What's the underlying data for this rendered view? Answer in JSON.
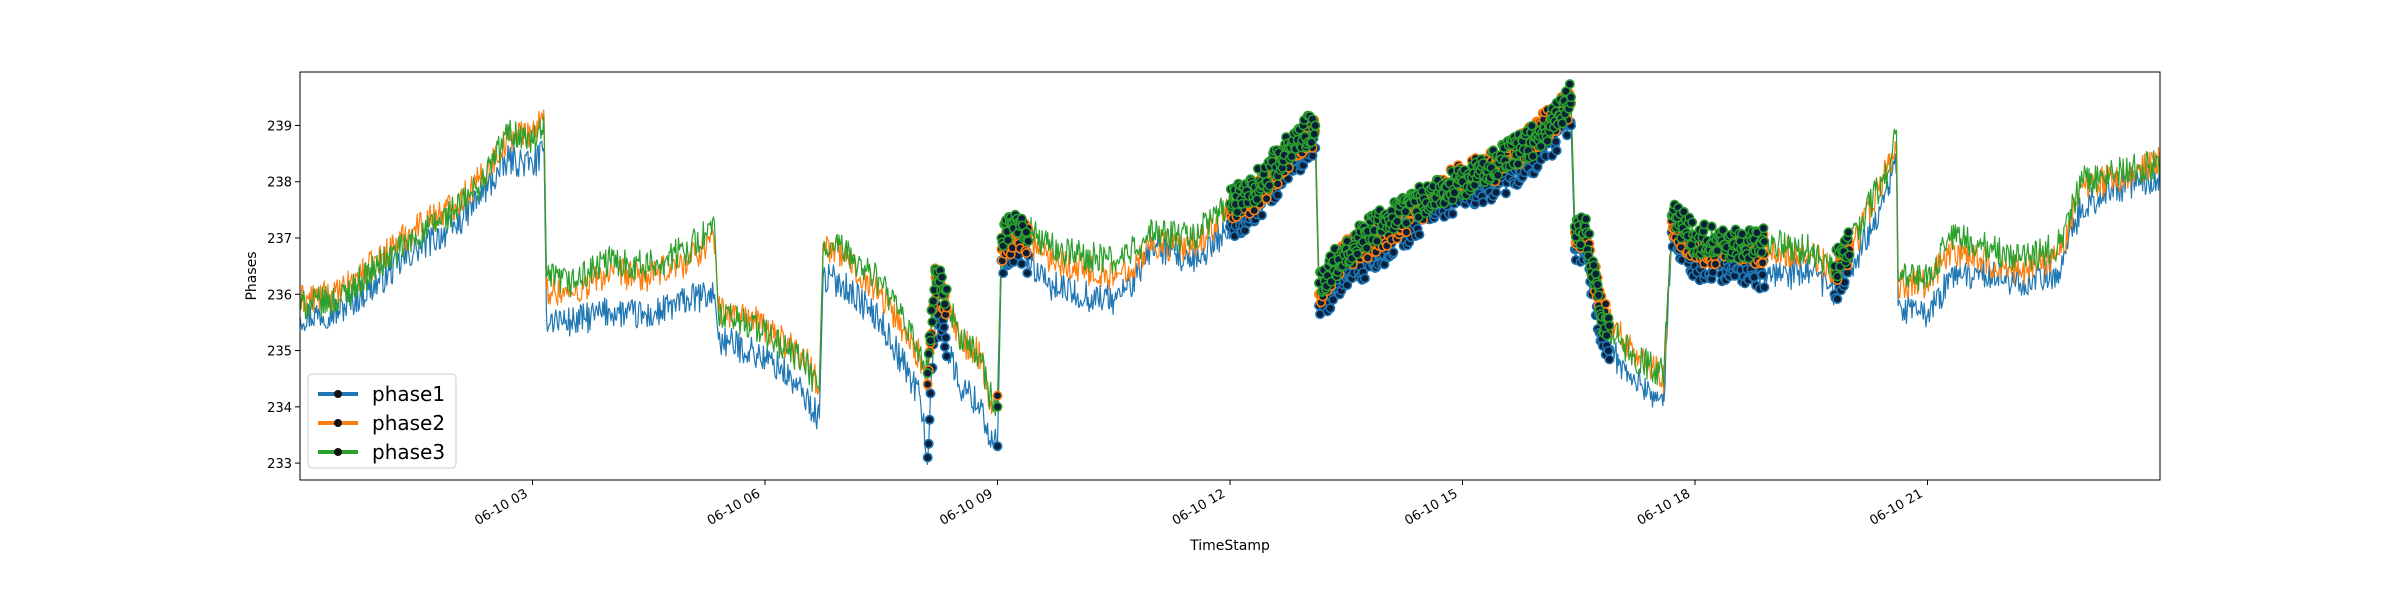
{
  "chart_data": {
    "type": "line",
    "title": "",
    "xlabel": "TimeStamp",
    "ylabel": "Phases",
    "xlim": [
      0.0,
      24.0
    ],
    "ylim": [
      232.7,
      239.95
    ],
    "grid": false,
    "legend_position": "lower-left",
    "x_ticks": [
      {
        "value": 3,
        "label": "06-10 03"
      },
      {
        "value": 6,
        "label": "06-10 06"
      },
      {
        "value": 9,
        "label": "06-10 09"
      },
      {
        "value": 12,
        "label": "06-10 12"
      },
      {
        "value": 15,
        "label": "06-10 15"
      },
      {
        "value": 18,
        "label": "06-10 18"
      },
      {
        "value": 21,
        "label": "06-10 21"
      }
    ],
    "y_ticks": [
      233,
      234,
      235,
      236,
      237,
      238,
      239
    ],
    "series": [
      {
        "name": "phase1",
        "color": "#1f77b4",
        "points": [
          [
            0.0,
            235.6
          ],
          [
            0.5,
            235.7
          ],
          [
            1.0,
            236.2
          ],
          [
            1.5,
            236.8
          ],
          [
            2.0,
            237.2
          ],
          [
            2.3,
            237.7
          ],
          [
            2.7,
            238.4
          ],
          [
            3.0,
            238.3
          ],
          [
            3.15,
            238.5
          ],
          [
            3.18,
            235.6
          ],
          [
            3.5,
            235.5
          ],
          [
            4.0,
            235.7
          ],
          [
            4.5,
            235.6
          ],
          [
            5.0,
            235.9
          ],
          [
            5.35,
            236.0
          ],
          [
            5.4,
            235.2
          ],
          [
            5.8,
            235.0
          ],
          [
            6.2,
            234.7
          ],
          [
            6.5,
            234.2
          ],
          [
            6.7,
            233.8
          ],
          [
            6.75,
            236.3
          ],
          [
            7.0,
            236.2
          ],
          [
            7.5,
            235.5
          ],
          [
            8.0,
            234.2
          ],
          [
            8.1,
            233.1
          ],
          [
            8.2,
            235.8
          ],
          [
            8.5,
            234.4
          ],
          [
            8.8,
            234.0
          ],
          [
            8.9,
            233.4
          ],
          [
            9.0,
            233.3
          ],
          [
            9.05,
            236.6
          ],
          [
            9.3,
            236.8
          ],
          [
            9.6,
            236.2
          ],
          [
            10.0,
            236.0
          ],
          [
            10.5,
            235.9
          ],
          [
            10.8,
            236.3
          ],
          [
            11.0,
            236.9
          ],
          [
            11.5,
            236.5
          ],
          [
            12.0,
            237.2
          ],
          [
            12.4,
            237.6
          ],
          [
            12.8,
            238.4
          ],
          [
            13.1,
            238.6
          ],
          [
            13.15,
            235.8
          ],
          [
            13.5,
            236.3
          ],
          [
            14.0,
            236.8
          ],
          [
            14.5,
            237.4
          ],
          [
            15.0,
            237.8
          ],
          [
            15.5,
            238.0
          ],
          [
            16.0,
            238.5
          ],
          [
            16.4,
            239.0
          ],
          [
            16.45,
            236.8
          ],
          [
            16.6,
            236.7
          ],
          [
            16.8,
            235.2
          ],
          [
            17.2,
            234.5
          ],
          [
            17.6,
            234.1
          ],
          [
            17.7,
            237.1
          ],
          [
            18.0,
            236.5
          ],
          [
            18.5,
            236.5
          ],
          [
            19.0,
            236.3
          ],
          [
            19.5,
            236.4
          ],
          [
            19.8,
            236.0
          ],
          [
            20.1,
            236.7
          ],
          [
            20.5,
            237.9
          ],
          [
            20.6,
            238.3
          ],
          [
            20.62,
            235.8
          ],
          [
            21.0,
            235.6
          ],
          [
            21.3,
            236.3
          ],
          [
            21.7,
            236.4
          ],
          [
            22.2,
            236.2
          ],
          [
            22.7,
            236.4
          ],
          [
            23.0,
            237.6
          ],
          [
            23.5,
            237.9
          ],
          [
            24.0,
            238.1
          ]
        ]
      },
      {
        "name": "phase2",
        "color": "#ff7f0e",
        "points": [
          [
            0.0,
            235.9
          ],
          [
            0.5,
            236.0
          ],
          [
            1.0,
            236.6
          ],
          [
            1.5,
            237.2
          ],
          [
            2.0,
            237.6
          ],
          [
            2.3,
            238.0
          ],
          [
            2.7,
            238.8
          ],
          [
            3.0,
            238.9
          ],
          [
            3.15,
            239.1
          ],
          [
            3.18,
            236.1
          ],
          [
            3.5,
            236.0
          ],
          [
            4.0,
            236.4
          ],
          [
            4.5,
            236.3
          ],
          [
            5.0,
            236.6
          ],
          [
            5.35,
            237.0
          ],
          [
            5.4,
            235.7
          ],
          [
            5.8,
            235.6
          ],
          [
            6.2,
            235.2
          ],
          [
            6.5,
            234.9
          ],
          [
            6.7,
            234.4
          ],
          [
            6.75,
            236.9
          ],
          [
            7.0,
            236.7
          ],
          [
            7.5,
            236.0
          ],
          [
            8.0,
            234.9
          ],
          [
            8.1,
            234.4
          ],
          [
            8.2,
            236.3
          ],
          [
            8.5,
            235.2
          ],
          [
            8.8,
            234.9
          ],
          [
            8.9,
            234.0
          ],
          [
            9.0,
            234.2
          ],
          [
            9.05,
            236.8
          ],
          [
            9.3,
            237.1
          ],
          [
            9.6,
            236.7
          ],
          [
            10.0,
            236.5
          ],
          [
            10.5,
            236.3
          ],
          [
            10.8,
            236.6
          ],
          [
            11.0,
            236.9
          ],
          [
            11.5,
            236.8
          ],
          [
            12.0,
            237.5
          ],
          [
            12.4,
            237.8
          ],
          [
            12.8,
            238.6
          ],
          [
            13.1,
            238.9
          ],
          [
            13.15,
            236.0
          ],
          [
            13.5,
            236.7
          ],
          [
            14.0,
            237.1
          ],
          [
            14.5,
            237.6
          ],
          [
            15.0,
            238.1
          ],
          [
            15.5,
            238.3
          ],
          [
            16.0,
            238.9
          ],
          [
            16.4,
            239.4
          ],
          [
            16.45,
            237.1
          ],
          [
            16.6,
            237.0
          ],
          [
            16.8,
            235.7
          ],
          [
            17.2,
            235.0
          ],
          [
            17.6,
            234.5
          ],
          [
            17.7,
            237.3
          ],
          [
            18.0,
            236.8
          ],
          [
            18.5,
            236.8
          ],
          [
            19.0,
            236.8
          ],
          [
            19.5,
            236.7
          ],
          [
            19.8,
            236.4
          ],
          [
            20.1,
            237.0
          ],
          [
            20.5,
            238.3
          ],
          [
            20.6,
            238.6
          ],
          [
            20.62,
            236.2
          ],
          [
            21.0,
            236.2
          ],
          [
            21.3,
            236.8
          ],
          [
            21.7,
            236.6
          ],
          [
            22.2,
            236.4
          ],
          [
            22.7,
            236.7
          ],
          [
            23.0,
            237.9
          ],
          [
            23.5,
            238.1
          ],
          [
            24.0,
            238.4
          ]
        ]
      },
      {
        "name": "phase3",
        "color": "#2ca02c",
        "points": [
          [
            0.0,
            235.8
          ],
          [
            0.5,
            235.9
          ],
          [
            1.0,
            236.5
          ],
          [
            1.5,
            237.0
          ],
          [
            2.0,
            237.5
          ],
          [
            2.3,
            237.9
          ],
          [
            2.7,
            238.9
          ],
          [
            3.0,
            238.7
          ],
          [
            3.15,
            238.9
          ],
          [
            3.18,
            236.3
          ],
          [
            3.5,
            236.2
          ],
          [
            4.0,
            236.6
          ],
          [
            4.5,
            236.5
          ],
          [
            5.0,
            236.8
          ],
          [
            5.35,
            237.2
          ],
          [
            5.4,
            235.6
          ],
          [
            5.8,
            235.5
          ],
          [
            6.2,
            235.1
          ],
          [
            6.5,
            234.8
          ],
          [
            6.7,
            234.3
          ],
          [
            6.75,
            236.8
          ],
          [
            7.0,
            236.8
          ],
          [
            7.5,
            236.2
          ],
          [
            8.0,
            235.0
          ],
          [
            8.1,
            234.6
          ],
          [
            8.2,
            236.4
          ],
          [
            8.5,
            235.3
          ],
          [
            8.8,
            234.8
          ],
          [
            8.9,
            234.2
          ],
          [
            9.0,
            234.0
          ],
          [
            9.05,
            237.0
          ],
          [
            9.3,
            237.3
          ],
          [
            9.6,
            236.9
          ],
          [
            10.0,
            236.7
          ],
          [
            10.5,
            236.6
          ],
          [
            10.8,
            236.8
          ],
          [
            11.0,
            237.1
          ],
          [
            11.5,
            237.0
          ],
          [
            12.0,
            237.6
          ],
          [
            12.4,
            238.0
          ],
          [
            12.8,
            238.7
          ],
          [
            13.1,
            239.0
          ],
          [
            13.15,
            236.2
          ],
          [
            13.5,
            236.8
          ],
          [
            14.0,
            237.3
          ],
          [
            14.5,
            237.7
          ],
          [
            15.0,
            238.0
          ],
          [
            15.5,
            238.4
          ],
          [
            16.0,
            238.8
          ],
          [
            16.4,
            239.5
          ],
          [
            16.45,
            237.2
          ],
          [
            16.6,
            237.1
          ],
          [
            16.8,
            235.6
          ],
          [
            17.2,
            234.9
          ],
          [
            17.6,
            234.6
          ],
          [
            17.7,
            237.4
          ],
          [
            18.0,
            237.0
          ],
          [
            18.5,
            236.9
          ],
          [
            19.0,
            236.9
          ],
          [
            19.5,
            236.8
          ],
          [
            19.8,
            236.5
          ],
          [
            20.1,
            237.2
          ],
          [
            20.5,
            238.2
          ],
          [
            20.6,
            238.9
          ],
          [
            20.62,
            236.3
          ],
          [
            21.0,
            236.3
          ],
          [
            21.3,
            237.0
          ],
          [
            21.7,
            236.9
          ],
          [
            22.2,
            236.6
          ],
          [
            22.7,
            236.9
          ],
          [
            23.0,
            238.0
          ],
          [
            23.5,
            238.2
          ],
          [
            24.0,
            238.3
          ]
        ]
      }
    ],
    "highlighted_segments": [
      [
        8.1,
        8.35
      ],
      [
        9.0,
        9.4
      ],
      [
        12.0,
        13.2
      ],
      [
        13.15,
        16.45
      ],
      [
        16.45,
        16.9
      ],
      [
        17.7,
        18.9
      ],
      [
        19.8,
        20.0
      ]
    ]
  }
}
